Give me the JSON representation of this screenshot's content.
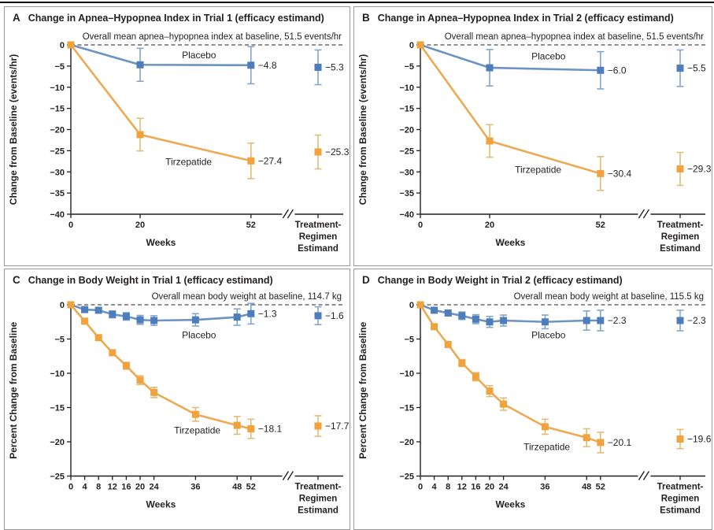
{
  "colors": {
    "placebo": {
      "main": "#4d7dba",
      "line": "#6b93c3",
      "err": "#82a6cb"
    },
    "tirzepatide": {
      "main": "#f0a23c",
      "line": "#edaa53",
      "err": "#e0bc79"
    },
    "text": "#231f20",
    "axis": "#231f20",
    "dashed_baseline": "#231f20",
    "panel_border": "#999999",
    "top_rule": "#000000"
  },
  "chart_data": [
    {
      "type": "line",
      "letter": "A",
      "title": "Change in Apnea–Hypopnea Index in Trial 1 (efficacy estimand)",
      "annotation": "Overall mean apnea–hypopnea index at baseline, 51.5 events/hr",
      "ylabel": "Change from Baseline (events/hr)",
      "xlabel": "Weeks",
      "estimand_label": [
        "Treatment-",
        "Regimen",
        "Estimand"
      ],
      "ylim": [
        0,
        -40
      ],
      "ytick_step": 5,
      "xmax": 52,
      "xticks": [
        0,
        20,
        52
      ],
      "grid": false,
      "series": [
        {
          "name": "Placebo",
          "color_key": "placebo",
          "x": [
            0,
            20,
            52
          ],
          "y": [
            0,
            -4.7,
            -4.8
          ],
          "err": [
            0,
            3.9,
            4.4
          ],
          "end_label": "−4.8",
          "estimand": {
            "y": -5.3,
            "err": 4.1,
            "label": "−5.3"
          },
          "name_pos": {
            "x": 37,
            "y": -3.2
          }
        },
        {
          "name": "Tirzepatide",
          "color_key": "tirzepatide",
          "x": [
            0,
            20,
            52
          ],
          "y": [
            0,
            -21.2,
            -27.4
          ],
          "err": [
            0,
            3.85,
            4.2
          ],
          "end_label": "−27.4",
          "estimand": {
            "y": -25.3,
            "err": 4.0,
            "label": "−25.3"
          },
          "name_pos": {
            "x": 34,
            "y": -28.4
          }
        }
      ]
    },
    {
      "type": "line",
      "letter": "B",
      "title": "Change in Apnea–Hypopnea Index in Trial 2 (efficacy estimand)",
      "annotation": "Overall mean apnea–hypopnea index at baseline, 51.5 events/hr",
      "ylabel": "Change from Baseline (events/hr)",
      "xlabel": "Weeks",
      "estimand_label": [
        "Treatment-",
        "Regimen",
        "Estimand"
      ],
      "ylim": [
        0,
        -40
      ],
      "ytick_step": 5,
      "xmax": 52,
      "xticks": [
        0,
        20,
        52
      ],
      "grid": false,
      "series": [
        {
          "name": "Placebo",
          "color_key": "placebo",
          "x": [
            0,
            20,
            52
          ],
          "y": [
            0,
            -5.4,
            -6.0
          ],
          "err": [
            0,
            4.3,
            4.4
          ],
          "end_label": "−6.0",
          "estimand": {
            "y": -5.5,
            "err": 4.3,
            "label": "−5.5"
          },
          "name_pos": {
            "x": 37,
            "y": -3.4
          }
        },
        {
          "name": "Tirzepatide",
          "color_key": "tirzepatide",
          "x": [
            0,
            20,
            52
          ],
          "y": [
            0,
            -22.7,
            -30.4
          ],
          "err": [
            0,
            3.85,
            4.0
          ],
          "end_label": "−30.4",
          "estimand": {
            "y": -29.3,
            "err": 3.9,
            "label": "−29.3"
          },
          "name_pos": {
            "x": 34,
            "y": -30.2
          }
        }
      ]
    },
    {
      "type": "line",
      "letter": "C",
      "title": "Change in Body Weight in Trial 1 (efficacy estimand)",
      "annotation": "Overall mean body weight at baseline, 114.7 kg",
      "ylabel": "Percent Change from Baseline",
      "xlabel": "Weeks",
      "estimand_label": [
        "Treatment-",
        "Regimen",
        "Estimand"
      ],
      "ylim": [
        0,
        -25
      ],
      "ytick_step": 5,
      "xmax": 52,
      "xticks": [
        0,
        4,
        8,
        12,
        16,
        20,
        24,
        36,
        48,
        52
      ],
      "grid": false,
      "series": [
        {
          "name": "Placebo",
          "color_key": "placebo",
          "x": [
            0,
            4,
            8,
            12,
            16,
            20,
            24,
            36,
            48,
            52
          ],
          "y": [
            0,
            -0.7,
            -0.8,
            -1.4,
            -1.7,
            -2.2,
            -2.3,
            -2.2,
            -1.8,
            -1.3
          ],
          "err": [
            0,
            0.3,
            0.35,
            0.5,
            0.55,
            0.65,
            0.7,
            0.9,
            1.2,
            1.5
          ],
          "end_label": "−1.3",
          "estimand": {
            "y": -1.6,
            "err": 1.3,
            "label": "−1.6"
          },
          "name_pos": {
            "x": 37,
            "y": -4.9
          }
        },
        {
          "name": "Tirzepatide",
          "color_key": "tirzepatide",
          "x": [
            0,
            4,
            8,
            12,
            16,
            20,
            24,
            36,
            48,
            52
          ],
          "y": [
            0,
            -2.4,
            -4.8,
            -7.0,
            -8.9,
            -11.0,
            -12.8,
            -16.0,
            -17.6,
            -18.1
          ],
          "err": [
            0,
            0.25,
            0.3,
            0.4,
            0.5,
            0.65,
            0.75,
            1.0,
            1.3,
            1.4
          ],
          "end_label": "−18.1",
          "estimand": {
            "y": -17.7,
            "err": 1.5,
            "label": "−17.7"
          },
          "name_pos": {
            "x": 36.5,
            "y": -18.8
          }
        }
      ]
    },
    {
      "type": "line",
      "letter": "D",
      "title": "Change in Body Weight in Trial 2 (efficacy estimand)",
      "annotation": "Overall mean body weight at baseline, 115.5 kg",
      "ylabel": "Percent Change from Baseline",
      "xlabel": "Weeks",
      "estimand_label": [
        "Treatment-",
        "Regimen",
        "Estimand"
      ],
      "ylim": [
        0,
        -25
      ],
      "ytick_step": 5,
      "xmax": 52,
      "xticks": [
        0,
        4,
        8,
        12,
        16,
        20,
        24,
        36,
        48,
        52
      ],
      "grid": false,
      "series": [
        {
          "name": "Placebo",
          "color_key": "placebo",
          "x": [
            0,
            4,
            8,
            12,
            16,
            20,
            24,
            36,
            48,
            52
          ],
          "y": [
            0,
            -0.8,
            -1.2,
            -1.6,
            -2.1,
            -2.5,
            -2.3,
            -2.5,
            -2.3,
            -2.3
          ],
          "err": [
            0,
            0.3,
            0.4,
            0.55,
            0.65,
            0.8,
            0.8,
            1.0,
            1.4,
            1.5
          ],
          "end_label": "−2.3",
          "estimand": {
            "y": -2.3,
            "err": 1.5,
            "label": "−2.3"
          },
          "name_pos": {
            "x": 37,
            "y": -4.9
          }
        },
        {
          "name": "Tirzepatide",
          "color_key": "tirzepatide",
          "x": [
            0,
            4,
            8,
            12,
            16,
            20,
            24,
            36,
            48,
            52
          ],
          "y": [
            0,
            -3.2,
            -5.8,
            -8.5,
            -10.5,
            -12.6,
            -14.5,
            -17.8,
            -19.4,
            -20.1
          ],
          "err": [
            0,
            0.25,
            0.35,
            0.5,
            0.6,
            0.8,
            0.9,
            1.1,
            1.3,
            1.5
          ],
          "end_label": "−20.1",
          "estimand": {
            "y": -19.6,
            "err": 1.4,
            "label": "−19.6"
          },
          "name_pos": {
            "x": 36.5,
            "y": -21.2
          }
        }
      ]
    }
  ]
}
